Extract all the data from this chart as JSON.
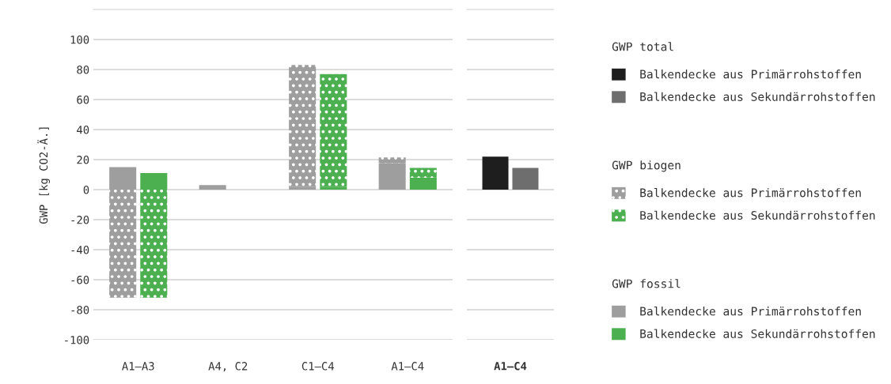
{
  "chart_data": [
    {
      "type": "bar",
      "stacked": true,
      "ylabel": "GWP [kg CO2-Ä.]",
      "categories": [
        "A1–A3",
        "A4, C2",
        "C1–C4",
        "A1–C4"
      ],
      "series": [
        {
          "name": "Balkendecke aus Primärrohstoffen",
          "color": "#9e9e9e",
          "values": [
            15,
            3,
            2,
            17.5
          ]
        },
        {
          "name": "Balkendecke aus Primärrohstoffen",
          "color": "#9e9e9e",
          "line_style": "dotted",
          "values": [
            -72,
            0,
            81,
            4
          ]
        }
      ],
      "annotations": [
        "GWP biogen",
        "GWP fossil"
      ],
      "ylim": [
        -100,
        120
      ],
      "yticks": [
        -100,
        -80,
        -60,
        -40,
        -20,
        0,
        20,
        40,
        60,
        80,
        100
      ],
      "grid": "y",
      "legend": "right"
    },
    {
      "type": "bar",
      "stacked": true,
      "categories": [
        null,
        null,
        null,
        null
      ],
      "series": [
        {
          "name": "Balkendecke aus Sekundärrohstoffen",
          "color": "#4caf50",
          "values": [
            11,
            0,
            2,
            8
          ]
        },
        {
          "name": "Balkendecke aus Sekundärrohstoffen",
          "color": "#4caf50",
          "line_style": "dotted",
          "values": [
            -72,
            0,
            75,
            6.5
          ]
        }
      ],
      "ylim": [
        -100,
        120
      ],
      "tick_labels": false,
      "legend": "right"
    },
    {
      "type": "bar",
      "categories": [
        "A1–C4"
      ],
      "legend_title": "GWP total",
      "series": [
        {
          "name": "Balkendecke aus Primärrohstoffen",
          "color": "#1e1e1e",
          "values": [
            22
          ]
        },
        {
          "name": "Balkendecke aus Sekundärrohstoffen",
          "color": "#6e6e6e",
          "values": [
            14.5
          ]
        }
      ],
      "ylim": [
        -100,
        120
      ],
      "yticks": [
        -100,
        -80,
        -60,
        -40,
        -20,
        0,
        20,
        40,
        60,
        80,
        100
      ],
      "grid": "y",
      "tick_labels": "x",
      "legend": "right"
    }
  ]
}
